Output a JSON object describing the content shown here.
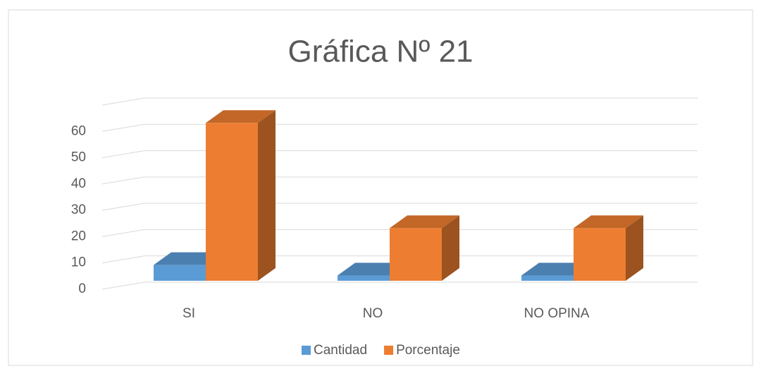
{
  "chart_data": {
    "type": "bar3d",
    "title": "Gráfica Nº 21",
    "categories": [
      "SI",
      "NO",
      "NO OPINA"
    ],
    "series": [
      {
        "name": "Cantidad",
        "color": "#5b9bd5",
        "values": [
          6,
          2,
          2
        ]
      },
      {
        "name": "Porcentaje",
        "color": "#ed7d31",
        "values": [
          60,
          20,
          20
        ]
      }
    ],
    "ylim": [
      0,
      70
    ],
    "yticks": [
      0,
      10,
      20,
      30,
      40,
      50,
      60
    ],
    "grid": true,
    "legend": "bottom"
  }
}
